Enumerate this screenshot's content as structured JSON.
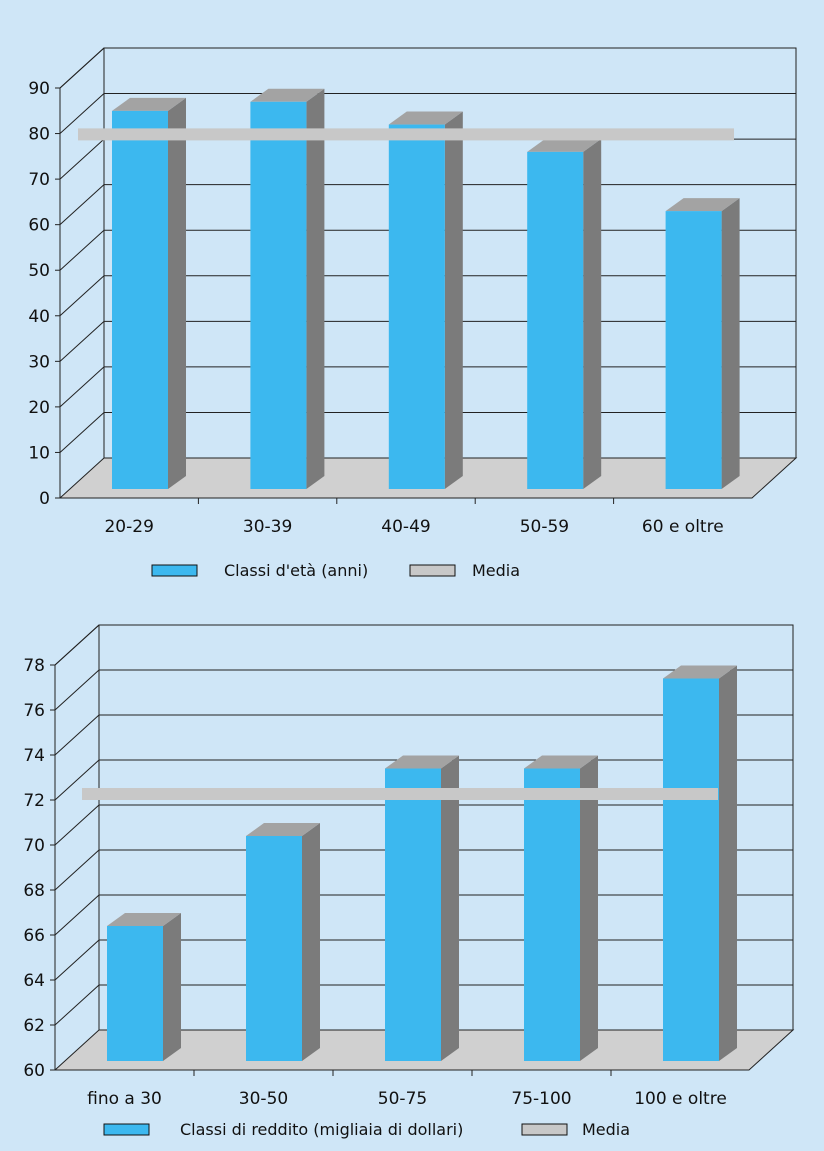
{
  "colors": {
    "background": "#cfe6f7",
    "bar_front": "#3cb8ef",
    "bar_side": "#7b7b7b",
    "bar_top": "#a3a3a3",
    "average": "#c8c8c8",
    "floor": "#d0d0d0"
  },
  "chart_data": [
    {
      "type": "bar",
      "categories": [
        "20-29",
        "30-39",
        "40-49",
        "50-59",
        "60 e oltre"
      ],
      "series": [
        {
          "name": "Classi d'età (anni)",
          "values": [
            83,
            85,
            80,
            74,
            61
          ]
        }
      ],
      "average": {
        "name": "Media",
        "value": 78.5
      },
      "yticks": [
        "0",
        "10",
        "20",
        "30",
        "40",
        "50",
        "60",
        "70",
        "80",
        "90"
      ],
      "ylim": [
        0,
        90
      ],
      "title": "",
      "xlabel": "",
      "ylabel": "",
      "grid": true,
      "legend_position": "bottom"
    },
    {
      "type": "bar",
      "categories": [
        "fino a 30",
        "30-50",
        "50-75",
        "75-100",
        "100 e oltre"
      ],
      "series": [
        {
          "name": "Classi di reddito (migliaia di dollari)",
          "values": [
            66,
            70,
            73,
            73,
            77
          ]
        }
      ],
      "average": {
        "name": "Media",
        "value": 72
      },
      "yticks": [
        "60",
        "62",
        "64",
        "66",
        "68",
        "70",
        "72",
        "74",
        "76",
        "78"
      ],
      "ylim": [
        60,
        78
      ],
      "title": "",
      "xlabel": "",
      "ylabel": "",
      "grid": true,
      "legend_position": "bottom"
    }
  ]
}
